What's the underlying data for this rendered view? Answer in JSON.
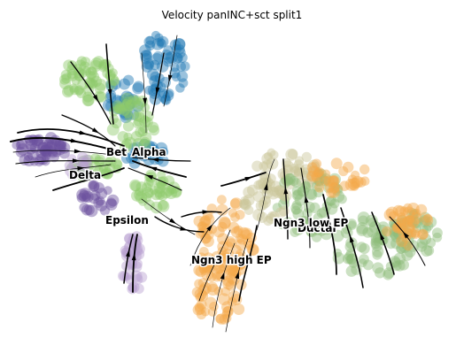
{
  "chart_data": {
    "type": "scatter",
    "title": "Velocity panINC+sct split1",
    "xlabel": "",
    "ylabel": "",
    "grid": false,
    "axes_visible": false,
    "overlay": "velocity streamlines",
    "colors": {
      "Alpha": "#1f77b4",
      "Beta": "#8fc96a",
      "Delta": "#6b4f9e",
      "Epsilon": "#b79fd0",
      "Ductal": "#8fbc7a",
      "Ngn3 low EP": "#c9c69a",
      "Ngn3 high EP": "#f5a84a"
    },
    "cluster_labels": [
      {
        "text": "Bet",
        "cluster": "Beta"
      },
      {
        "text": "Alpha",
        "cluster": "Alpha"
      },
      {
        "text": "Delta",
        "cluster": "Delta"
      },
      {
        "text": "Epsilon",
        "cluster": "Epsilon"
      },
      {
        "text": "Ductal",
        "cluster": "Ductal"
      },
      {
        "text": "Ngn3 low EP",
        "cluster": "Ngn3 low EP"
      },
      {
        "text": "Ngn3 high EP",
        "cluster": "Ngn3 high EP"
      }
    ]
  }
}
